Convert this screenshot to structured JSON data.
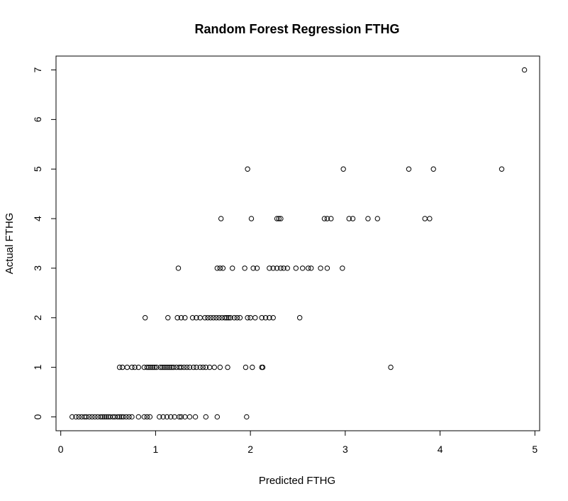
{
  "chart_data": {
    "type": "scatter",
    "title": "Random Forest Regression FTHG",
    "xlabel": "Predicted FTHG",
    "ylabel": "Actual FTHG",
    "xlim": [
      -0.05,
      5.05
    ],
    "ylim": [
      -0.28,
      7.28
    ],
    "xticks": [
      0,
      1,
      2,
      3,
      4,
      5
    ],
    "yticks": [
      0,
      1,
      2,
      3,
      4,
      5,
      6,
      7
    ],
    "grid": false,
    "legend": "none",
    "marker": "open-circle",
    "points": [
      {
        "x": 0.12,
        "y": 0
      },
      {
        "x": 0.16,
        "y": 0
      },
      {
        "x": 0.19,
        "y": 0
      },
      {
        "x": 0.22,
        "y": 0
      },
      {
        "x": 0.25,
        "y": 0
      },
      {
        "x": 0.27,
        "y": 0
      },
      {
        "x": 0.3,
        "y": 0
      },
      {
        "x": 0.33,
        "y": 0
      },
      {
        "x": 0.36,
        "y": 0
      },
      {
        "x": 0.39,
        "y": 0
      },
      {
        "x": 0.42,
        "y": 0
      },
      {
        "x": 0.44,
        "y": 0
      },
      {
        "x": 0.46,
        "y": 0
      },
      {
        "x": 0.48,
        "y": 0
      },
      {
        "x": 0.5,
        "y": 0
      },
      {
        "x": 0.52,
        "y": 0
      },
      {
        "x": 0.55,
        "y": 0
      },
      {
        "x": 0.57,
        "y": 0
      },
      {
        "x": 0.6,
        "y": 0
      },
      {
        "x": 0.62,
        "y": 0
      },
      {
        "x": 0.64,
        "y": 0
      },
      {
        "x": 0.66,
        "y": 0
      },
      {
        "x": 0.69,
        "y": 0
      },
      {
        "x": 0.72,
        "y": 0
      },
      {
        "x": 0.75,
        "y": 0
      },
      {
        "x": 0.82,
        "y": 0
      },
      {
        "x": 0.88,
        "y": 0
      },
      {
        "x": 0.91,
        "y": 0
      },
      {
        "x": 0.94,
        "y": 0
      },
      {
        "x": 1.04,
        "y": 0
      },
      {
        "x": 1.08,
        "y": 0
      },
      {
        "x": 1.12,
        "y": 0
      },
      {
        "x": 1.16,
        "y": 0
      },
      {
        "x": 1.2,
        "y": 0
      },
      {
        "x": 1.25,
        "y": 0
      },
      {
        "x": 1.27,
        "y": 0
      },
      {
        "x": 1.31,
        "y": 0
      },
      {
        "x": 1.36,
        "y": 0
      },
      {
        "x": 1.42,
        "y": 0
      },
      {
        "x": 1.53,
        "y": 0
      },
      {
        "x": 1.65,
        "y": 0
      },
      {
        "x": 1.96,
        "y": 0
      },
      {
        "x": 0.62,
        "y": 1
      },
      {
        "x": 0.65,
        "y": 1
      },
      {
        "x": 0.7,
        "y": 1
      },
      {
        "x": 0.75,
        "y": 1
      },
      {
        "x": 0.78,
        "y": 1
      },
      {
        "x": 0.82,
        "y": 1
      },
      {
        "x": 0.88,
        "y": 1
      },
      {
        "x": 0.91,
        "y": 1
      },
      {
        "x": 0.93,
        "y": 1
      },
      {
        "x": 0.95,
        "y": 1
      },
      {
        "x": 0.97,
        "y": 1
      },
      {
        "x": 0.99,
        "y": 1
      },
      {
        "x": 1.01,
        "y": 1
      },
      {
        "x": 1.05,
        "y": 1
      },
      {
        "x": 1.07,
        "y": 1
      },
      {
        "x": 1.09,
        "y": 1
      },
      {
        "x": 1.11,
        "y": 1
      },
      {
        "x": 1.13,
        "y": 1
      },
      {
        "x": 1.15,
        "y": 1
      },
      {
        "x": 1.17,
        "y": 1
      },
      {
        "x": 1.19,
        "y": 1
      },
      {
        "x": 1.22,
        "y": 1
      },
      {
        "x": 1.25,
        "y": 1
      },
      {
        "x": 1.27,
        "y": 1
      },
      {
        "x": 1.3,
        "y": 1
      },
      {
        "x": 1.33,
        "y": 1
      },
      {
        "x": 1.36,
        "y": 1
      },
      {
        "x": 1.4,
        "y": 1
      },
      {
        "x": 1.43,
        "y": 1
      },
      {
        "x": 1.47,
        "y": 1
      },
      {
        "x": 1.5,
        "y": 1
      },
      {
        "x": 1.53,
        "y": 1
      },
      {
        "x": 1.57,
        "y": 1
      },
      {
        "x": 1.62,
        "y": 1
      },
      {
        "x": 1.68,
        "y": 1
      },
      {
        "x": 1.76,
        "y": 1
      },
      {
        "x": 1.95,
        "y": 1
      },
      {
        "x": 2.02,
        "y": 1
      },
      {
        "x": 2.12,
        "y": 1
      },
      {
        "x": 2.13,
        "y": 1
      },
      {
        "x": 3.48,
        "y": 1
      },
      {
        "x": 0.89,
        "y": 2
      },
      {
        "x": 1.13,
        "y": 2
      },
      {
        "x": 1.23,
        "y": 2
      },
      {
        "x": 1.27,
        "y": 2
      },
      {
        "x": 1.31,
        "y": 2
      },
      {
        "x": 1.39,
        "y": 2
      },
      {
        "x": 1.43,
        "y": 2
      },
      {
        "x": 1.47,
        "y": 2
      },
      {
        "x": 1.52,
        "y": 2
      },
      {
        "x": 1.55,
        "y": 2
      },
      {
        "x": 1.58,
        "y": 2
      },
      {
        "x": 1.61,
        "y": 2
      },
      {
        "x": 1.64,
        "y": 2
      },
      {
        "x": 1.67,
        "y": 2
      },
      {
        "x": 1.7,
        "y": 2
      },
      {
        "x": 1.73,
        "y": 2
      },
      {
        "x": 1.75,
        "y": 2
      },
      {
        "x": 1.77,
        "y": 2
      },
      {
        "x": 1.79,
        "y": 2
      },
      {
        "x": 1.83,
        "y": 2
      },
      {
        "x": 1.86,
        "y": 2
      },
      {
        "x": 1.89,
        "y": 2
      },
      {
        "x": 1.97,
        "y": 2
      },
      {
        "x": 2.0,
        "y": 2
      },
      {
        "x": 2.05,
        "y": 2
      },
      {
        "x": 2.12,
        "y": 2
      },
      {
        "x": 2.16,
        "y": 2
      },
      {
        "x": 2.2,
        "y": 2
      },
      {
        "x": 2.24,
        "y": 2
      },
      {
        "x": 2.52,
        "y": 2
      },
      {
        "x": 1.24,
        "y": 3
      },
      {
        "x": 1.65,
        "y": 3
      },
      {
        "x": 1.68,
        "y": 3
      },
      {
        "x": 1.71,
        "y": 3
      },
      {
        "x": 1.81,
        "y": 3
      },
      {
        "x": 1.94,
        "y": 3
      },
      {
        "x": 2.03,
        "y": 3
      },
      {
        "x": 2.07,
        "y": 3
      },
      {
        "x": 2.2,
        "y": 3
      },
      {
        "x": 2.24,
        "y": 3
      },
      {
        "x": 2.28,
        "y": 3
      },
      {
        "x": 2.32,
        "y": 3
      },
      {
        "x": 2.35,
        "y": 3
      },
      {
        "x": 2.39,
        "y": 3
      },
      {
        "x": 2.48,
        "y": 3
      },
      {
        "x": 2.55,
        "y": 3
      },
      {
        "x": 2.61,
        "y": 3
      },
      {
        "x": 2.64,
        "y": 3
      },
      {
        "x": 2.74,
        "y": 3
      },
      {
        "x": 2.81,
        "y": 3
      },
      {
        "x": 2.97,
        "y": 3
      },
      {
        "x": 1.69,
        "y": 4
      },
      {
        "x": 2.01,
        "y": 4
      },
      {
        "x": 2.28,
        "y": 4
      },
      {
        "x": 2.3,
        "y": 4
      },
      {
        "x": 2.32,
        "y": 4
      },
      {
        "x": 2.78,
        "y": 4
      },
      {
        "x": 2.81,
        "y": 4
      },
      {
        "x": 2.85,
        "y": 4
      },
      {
        "x": 3.04,
        "y": 4
      },
      {
        "x": 3.08,
        "y": 4
      },
      {
        "x": 3.24,
        "y": 4
      },
      {
        "x": 3.34,
        "y": 4
      },
      {
        "x": 3.84,
        "y": 4
      },
      {
        "x": 3.89,
        "y": 4
      },
      {
        "x": 1.97,
        "y": 5
      },
      {
        "x": 2.98,
        "y": 5
      },
      {
        "x": 3.67,
        "y": 5
      },
      {
        "x": 3.93,
        "y": 5
      },
      {
        "x": 4.65,
        "y": 5
      },
      {
        "x": 4.89,
        "y": 7
      }
    ]
  }
}
